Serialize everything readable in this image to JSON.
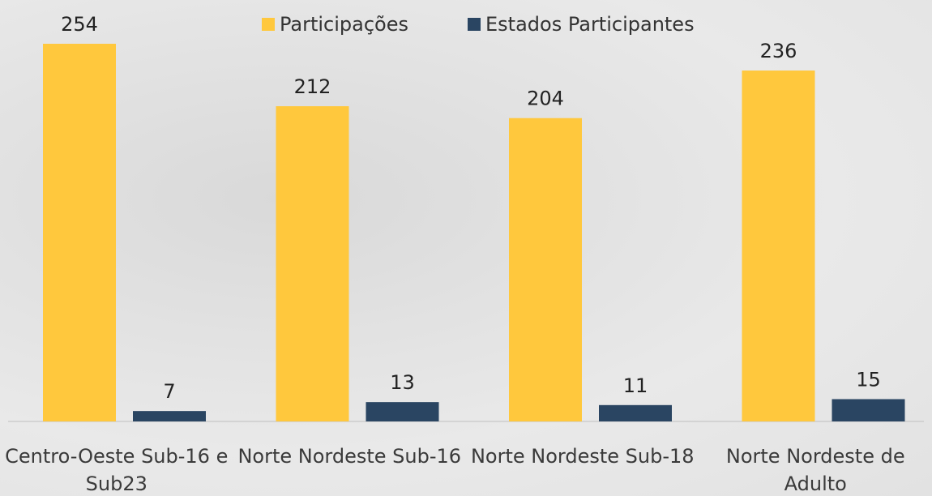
{
  "chart_data": {
    "type": "bar",
    "categories": [
      "Centro-Oeste Sub-16 e Sub23",
      "Norte Nordeste Sub-16",
      "Norte Nordeste Sub-18",
      "Norte Nordeste de Adulto"
    ],
    "series": [
      {
        "name": "Participações",
        "color": "#ffc83d",
        "values": [
          254,
          212,
          204,
          236
        ]
      },
      {
        "name": "Estados Participantes",
        "color": "#2a4562",
        "values": [
          7,
          13,
          11,
          15
        ]
      }
    ],
    "legend": "top"
  }
}
